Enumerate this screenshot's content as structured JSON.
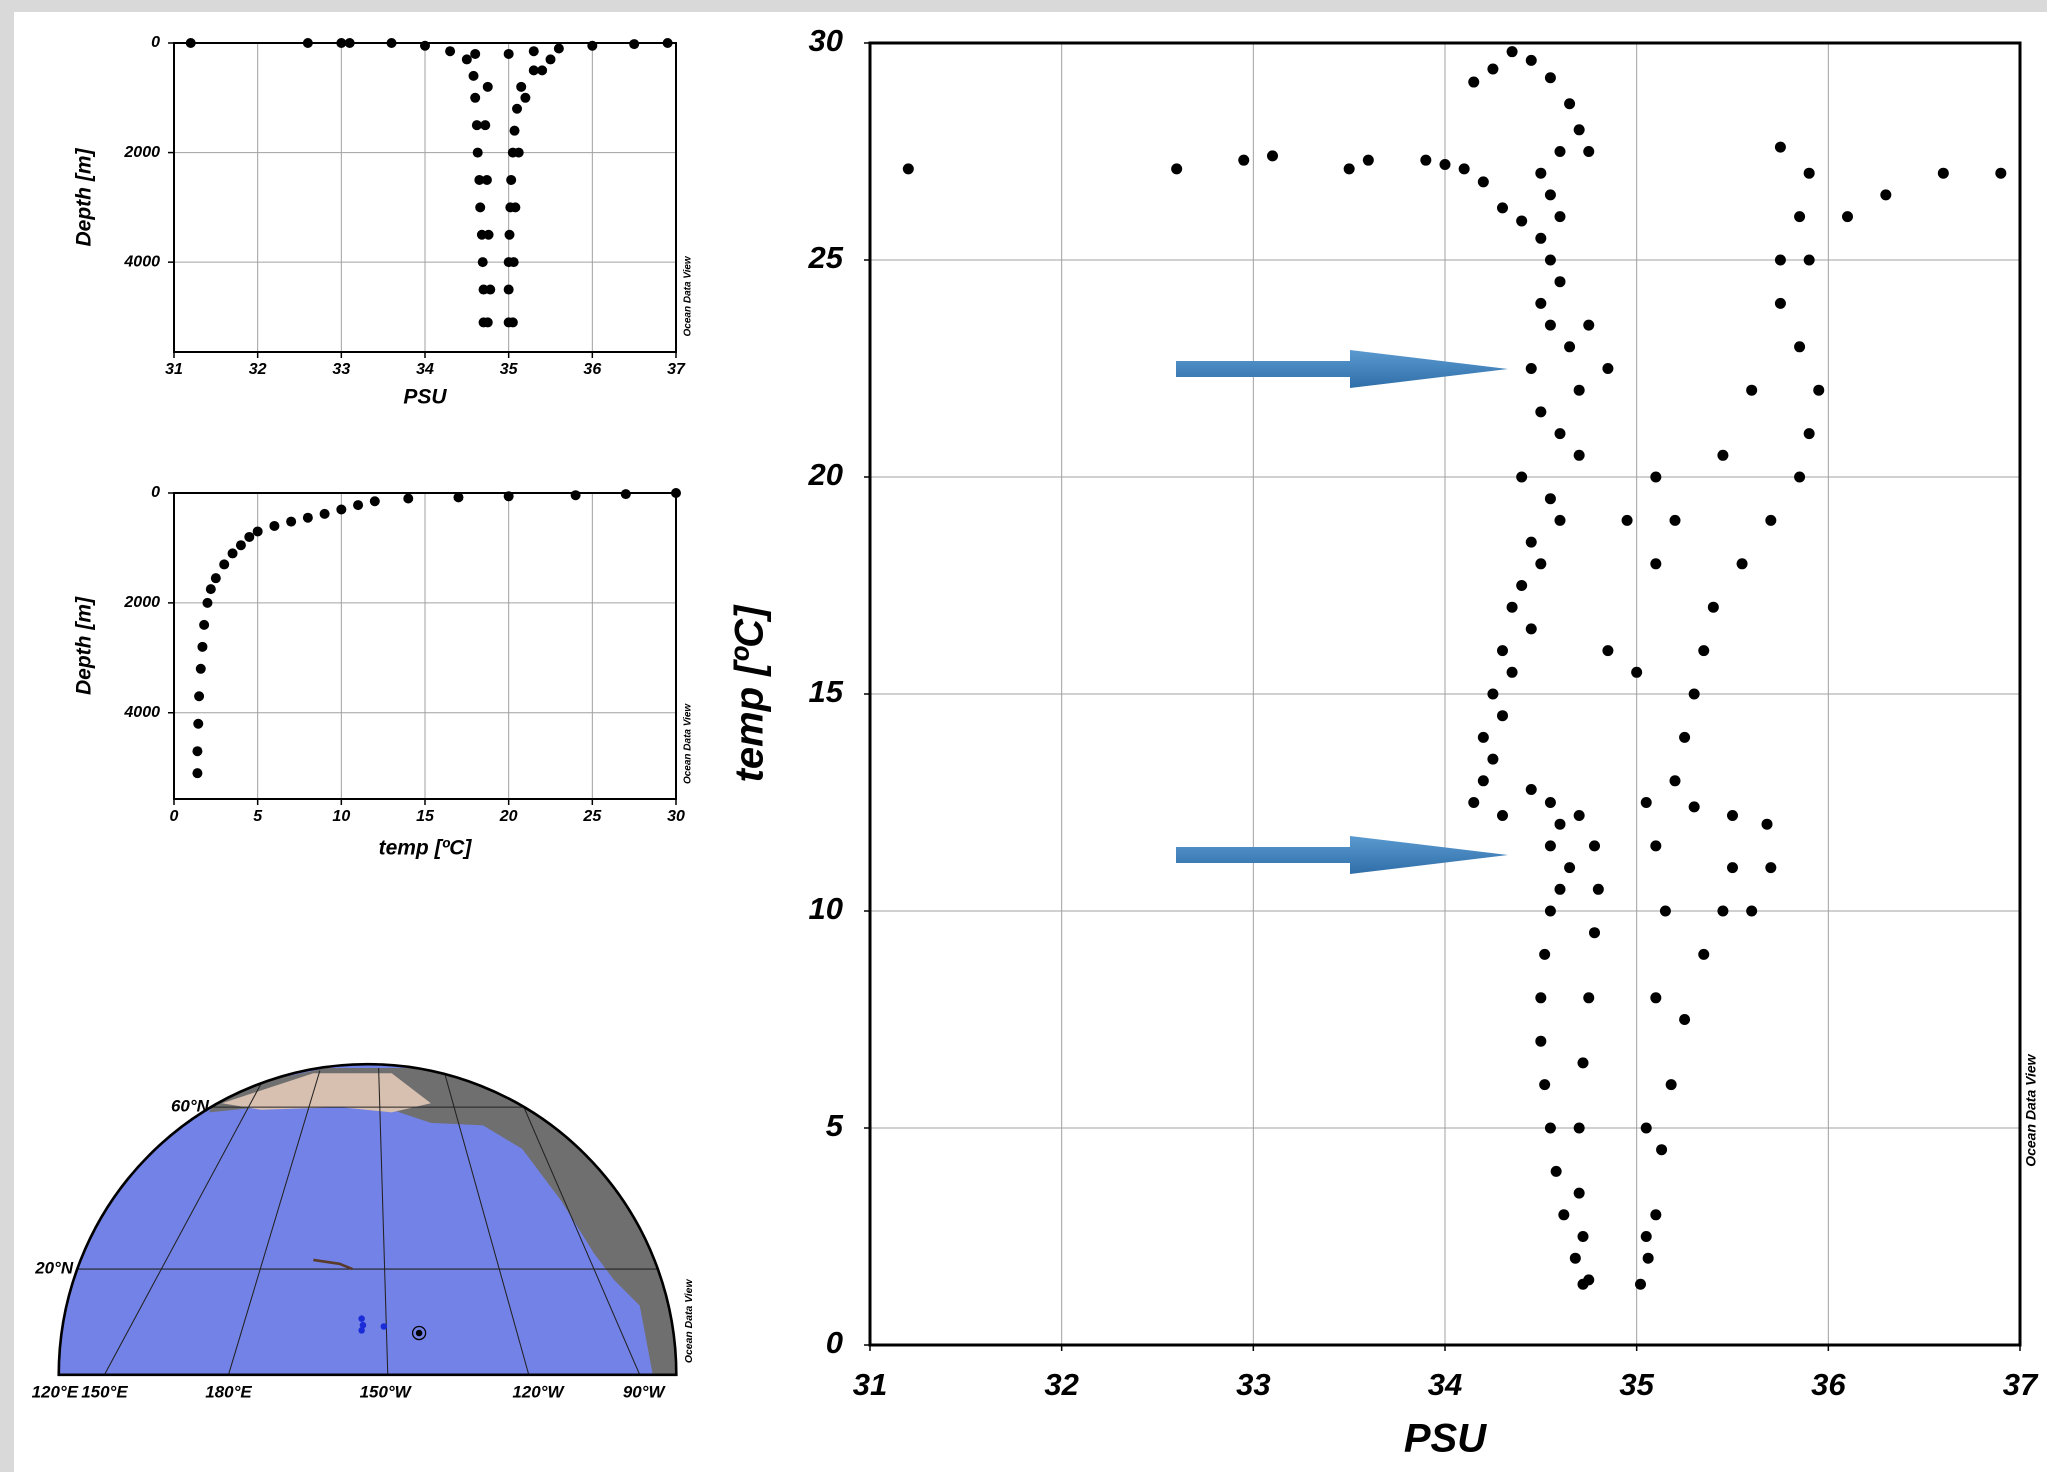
{
  "chart_data": [
    {
      "type": "scatter",
      "x_label": "PSU",
      "y_label": "Depth [m]",
      "watermark": "Ocean Data View",
      "color": "#000000",
      "x": [
        31.2,
        32.6,
        33.0,
        33.1,
        33.6,
        34.0,
        34.3,
        34.6,
        35.0,
        35.3,
        35.6,
        36.0,
        36.5,
        36.9,
        34.5,
        34.58,
        34.6,
        34.62,
        34.63,
        34.65,
        34.66,
        34.68,
        34.69,
        34.7,
        34.7,
        34.75,
        34.78,
        34.76,
        34.74,
        34.72,
        34.75,
        35.5,
        35.3,
        35.15,
        35.1,
        35.07,
        35.05,
        35.03,
        35.02,
        35.01,
        35.0,
        35.0,
        35.0,
        35.05,
        35.06,
        35.08,
        35.12,
        35.2,
        35.4
      ],
      "values": [
        0,
        0,
        0,
        0,
        0,
        50,
        150,
        200,
        200,
        150,
        100,
        50,
        20,
        0,
        300,
        600,
        1000,
        1500,
        2000,
        2500,
        3000,
        3500,
        4000,
        4500,
        5100,
        5100,
        4500,
        3500,
        2500,
        1500,
        800,
        300,
        500,
        800,
        1200,
        1600,
        2000,
        2500,
        3000,
        3500,
        4000,
        4500,
        5100,
        5100,
        4000,
        3000,
        2000,
        1000,
        500
      ],
      "xlim": [
        31,
        37
      ],
      "ylim": [
        0,
        5640
      ],
      "xticks": [
        31,
        32,
        33,
        34,
        35,
        36,
        37
      ],
      "yticks": [
        0,
        2000,
        4000
      ],
      "y_inverted": true,
      "grid": true
    },
    {
      "type": "scatter",
      "x_label": "temp [ºC]",
      "y_label": "Depth [m]",
      "watermark": "Ocean Data View",
      "color": "#000000",
      "x": [
        30,
        27,
        24,
        20,
        17,
        14,
        12,
        11,
        10,
        9,
        8,
        7,
        6,
        5,
        4.5,
        4,
        3.5,
        3,
        2.5,
        2.2,
        2,
        1.8,
        1.7,
        1.6,
        1.5,
        1.45,
        1.4,
        1.4
      ],
      "values": [
        0,
        20,
        40,
        60,
        80,
        100,
        150,
        220,
        300,
        380,
        450,
        520,
        600,
        700,
        800,
        950,
        1100,
        1300,
        1550,
        1750,
        2000,
        2400,
        2800,
        3200,
        3700,
        4200,
        4700,
        5100
      ],
      "xlim": [
        0,
        30
      ],
      "ylim": [
        0,
        5570
      ],
      "xticks": [
        0,
        5,
        10,
        15,
        20,
        25,
        30
      ],
      "yticks": [
        0,
        2000,
        4000
      ],
      "y_inverted": true,
      "grid": true
    },
    {
      "type": "scatter",
      "x_label": "PSU",
      "y_label": "temp [ºC]",
      "watermark": "Ocean Data View",
      "color": "#000000",
      "x": [
        31.2,
        32.6,
        32.95,
        33.1,
        33.5,
        33.6,
        33.9,
        34.0,
        34.1,
        34.2,
        34.3,
        34.4,
        34.15,
        34.25,
        34.35,
        34.45,
        34.55,
        34.65,
        34.7,
        34.75,
        34.6,
        34.5,
        34.55,
        34.6,
        34.5,
        34.55,
        34.6,
        34.5,
        34.55,
        34.65,
        34.45,
        34.85,
        34.75,
        34.7,
        34.5,
        34.6,
        34.7,
        34.4,
        34.55,
        34.6,
        34.45,
        34.5,
        34.4,
        34.35,
        34.45,
        34.3,
        34.35,
        34.25,
        34.3,
        34.2,
        34.25,
        34.2,
        34.15,
        34.3,
        34.45,
        34.55,
        34.6,
        34.55,
        34.65,
        34.6,
        34.55,
        34.52,
        34.5,
        34.5,
        34.52,
        34.55,
        34.58,
        34.62,
        34.68,
        34.72,
        34.75,
        34.72,
        34.7,
        34.7,
        34.72,
        34.75,
        34.78,
        34.8,
        34.78,
        34.7,
        35.02,
        35.06,
        35.1,
        35.13,
        35.18,
        35.25,
        35.35,
        35.45,
        35.5,
        35.5,
        35.05,
        35.05,
        35.1,
        35.15,
        35.1,
        35.05,
        35.6,
        35.7,
        35.68,
        35.3,
        35.2,
        35.25,
        35.3,
        35.35,
        35.4,
        35.55,
        35.7,
        35.85,
        35.9,
        35.95,
        35.85,
        35.75,
        35.9,
        36.1,
        36.3,
        36.6,
        36.9,
        35.0,
        35.1,
        35.2,
        35.45,
        35.6,
        35.75,
        35.85,
        35.9,
        35.75,
        34.85,
        34.95,
        35.1
      ],
      "values": [
        27.1,
        27.1,
        27.3,
        27.4,
        27.1,
        27.3,
        27.3,
        27.2,
        27.1,
        26.8,
        26.2,
        25.9,
        29.1,
        29.4,
        29.8,
        29.6,
        29.2,
        28.6,
        28,
        27.5,
        27.5,
        27,
        26.5,
        26,
        25.5,
        25,
        24.5,
        24,
        23.5,
        23,
        22.5,
        22.5,
        23.5,
        22,
        21.5,
        21,
        20.5,
        20,
        19.5,
        19,
        18.5,
        18,
        17.5,
        17,
        16.5,
        16,
        15.5,
        15,
        14.5,
        14,
        13.5,
        13,
        12.5,
        12.2,
        12.8,
        12.5,
        12,
        11.5,
        11,
        10.5,
        10,
        9,
        8,
        7,
        6,
        5,
        4,
        3,
        2,
        1.4,
        1.5,
        2.5,
        3.5,
        5,
        6.5,
        8,
        9.5,
        10.5,
        11.5,
        12.2,
        1.4,
        2,
        3,
        4.5,
        6,
        7.5,
        9,
        10,
        11,
        12.2,
        2.5,
        5,
        8,
        10,
        11.5,
        12.5,
        10,
        11,
        12,
        12.4,
        13,
        14,
        15,
        16,
        17,
        18,
        19,
        20,
        21,
        22,
        23,
        24,
        25,
        26,
        26.5,
        27,
        27,
        15.5,
        18,
        19,
        20.5,
        22,
        25,
        26,
        27,
        27.6,
        16,
        19,
        20
      ],
      "xlim": [
        31,
        37
      ],
      "ylim": [
        0,
        30
      ],
      "xticks": [
        31,
        32,
        33,
        34,
        35,
        36,
        37
      ],
      "yticks": [
        0,
        5,
        10,
        15,
        20,
        25,
        30
      ],
      "y_inverted": false,
      "grid": true
    }
  ],
  "map": {
    "lat_labels": [
      "60°N",
      "20°N"
    ],
    "lon_labels": [
      "120°E",
      "150°E",
      "180°E",
      "150°W",
      "120°W",
      "90°W"
    ],
    "watermark": "Ocean Data View"
  }
}
